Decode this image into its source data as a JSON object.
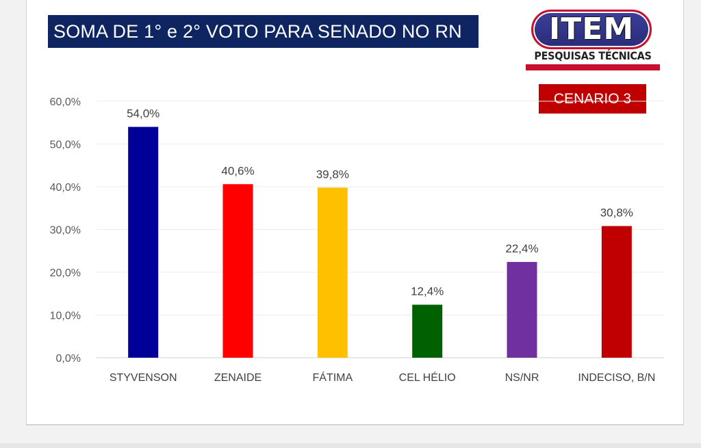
{
  "title": "SOMA DE 1° e 2° VOTO PARA SENADO NO RN",
  "logo": {
    "name": "ITEM",
    "subtitle": "PESQUISAS TÉCNICAS"
  },
  "scenario": "CENARIO 3",
  "colors": {
    "title_bg": "#0f2561",
    "accent_red": "#c00000"
  },
  "chart_data": {
    "type": "bar",
    "title": "SOMA DE 1° e 2° VOTO PARA SENADO NO RN",
    "xlabel": "",
    "ylabel": "",
    "ylim": [
      0,
      60
    ],
    "yticks": [
      0,
      10,
      20,
      30,
      40,
      50,
      60
    ],
    "ytick_labels": [
      "0,0%",
      "10,0%",
      "20,0%",
      "30,0%",
      "40,0%",
      "50,0%",
      "60,0%"
    ],
    "grid": true,
    "legend": "none",
    "categories": [
      "STYVENSON",
      "ZENAIDE",
      "FÁTIMA",
      "CEL HÉLIO",
      "NS/NR",
      "INDECISO, B/N"
    ],
    "values": [
      54.0,
      40.6,
      39.8,
      12.4,
      22.4,
      30.8
    ],
    "value_labels": [
      "54,0%",
      "40,6%",
      "39,8%",
      "12,4%",
      "22,4%",
      "30,8%"
    ],
    "bar_colors": [
      "#000099",
      "#ff0000",
      "#ffc000",
      "#006100",
      "#7030a0",
      "#c00000"
    ]
  }
}
